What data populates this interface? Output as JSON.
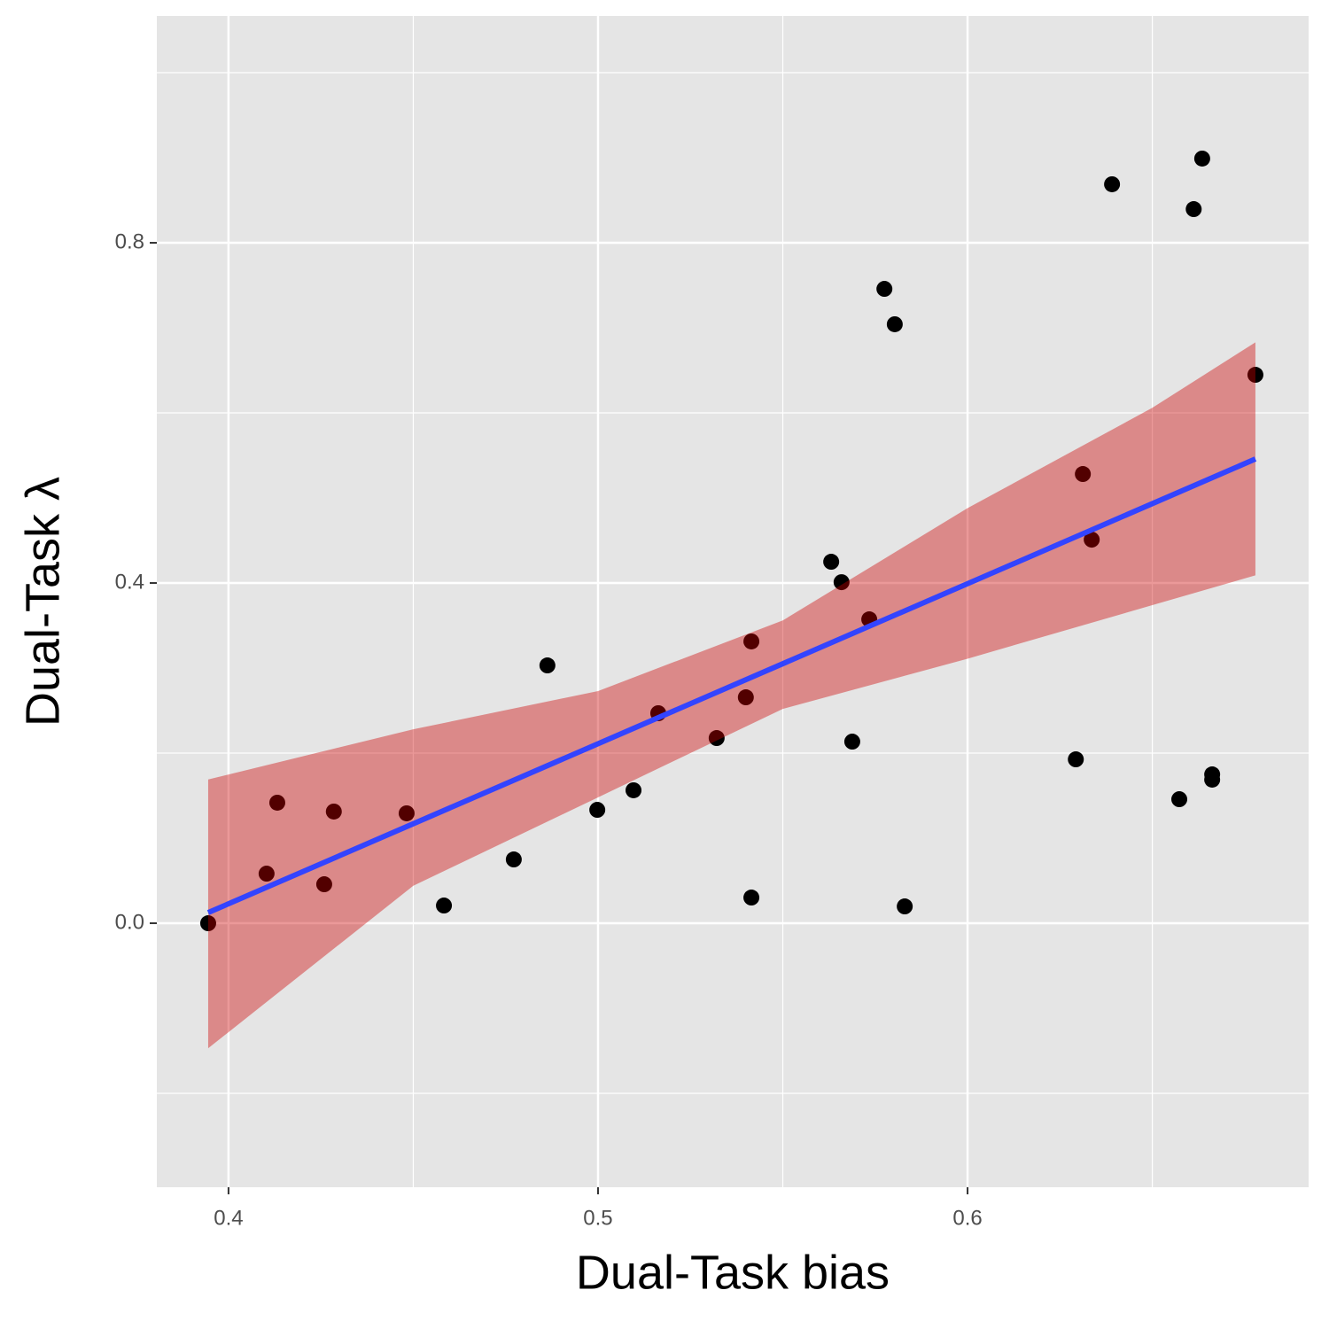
{
  "chart_data": {
    "type": "scatter",
    "x_label": "Dual-Task bias",
    "y_label": "Dual-Task λ",
    "xlim": [
      0.3806,
      0.6923
    ],
    "ylim": [
      -0.3104,
      1.0667
    ],
    "xticks": [
      0.4,
      0.5,
      0.6
    ],
    "yticks": [
      {
        "value": 0,
        "label": "0.0"
      },
      0.4,
      0.8
    ],
    "x_minor_grid": [
      0.45,
      0.55,
      0.65
    ],
    "y_minor_grid": [
      -0.2,
      0.2,
      0.6,
      1.0
    ],
    "grid": true,
    "points": {
      "color": "#000000",
      "x": [
        0.3945,
        0.4103,
        0.4132,
        0.4259,
        0.4285,
        0.4482,
        0.4583,
        0.4772,
        0.4863,
        0.4998,
        0.5096,
        0.5163,
        0.5321,
        0.54,
        0.5415,
        0.5415,
        0.5631,
        0.5659,
        0.5688,
        0.5734,
        0.5775,
        0.5803,
        0.583,
        0.6293,
        0.6312,
        0.6336,
        0.6391,
        0.6573,
        0.6612,
        0.6635,
        0.6662,
        0.6662,
        0.6779
      ],
      "y": [
        0.0,
        0.0583,
        0.1417,
        0.0458,
        0.1313,
        0.1292,
        0.0208,
        0.075,
        0.3031,
        0.1333,
        0.1563,
        0.2469,
        0.2177,
        0.2656,
        0.3313,
        0.0302,
        0.425,
        0.401,
        0.2135,
        0.3573,
        0.7458,
        0.7042,
        0.0198,
        0.1927,
        0.5281,
        0.451,
        0.8688,
        0.1458,
        0.8396,
        0.899,
        0.175,
        0.1688,
        0.6448
      ]
    },
    "band": {
      "color": "#cc0000",
      "opacity": 0.4,
      "x": [
        0.3945,
        0.45,
        0.5,
        0.55,
        0.6,
        0.65,
        0.6779
      ],
      "lower": [
        -0.147,
        0.044,
        0.148,
        0.252,
        0.311,
        0.374,
        0.409
      ],
      "upper": [
        0.169,
        0.228,
        0.273,
        0.356,
        0.488,
        0.606,
        0.683
      ]
    },
    "fit": {
      "color": "#3344ff",
      "x": [
        0.3945,
        0.6779
      ],
      "y": [
        0.0125,
        0.5458
      ]
    }
  }
}
